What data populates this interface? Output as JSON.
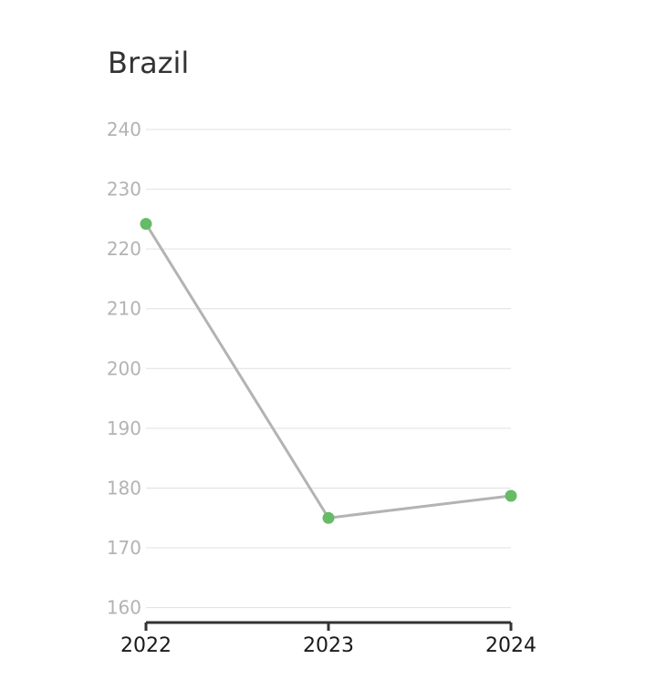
{
  "chart_data": {
    "type": "line",
    "title": "Brazil",
    "xlabel": "",
    "ylabel": "",
    "categories": [
      "2022",
      "2023",
      "2024"
    ],
    "series": [
      {
        "values": [
          224.2,
          175.0,
          178.7
        ]
      }
    ],
    "yticks": [
      160,
      170,
      180,
      190,
      200,
      210,
      220,
      230,
      240
    ],
    "ylim": [
      157.5,
      240
    ],
    "grid": true,
    "legend": "none",
    "colors": {
      "line": "#b3b3b3",
      "marker": "#66bb66",
      "grid": "#e0e0e0",
      "axis": "#333333"
    }
  }
}
